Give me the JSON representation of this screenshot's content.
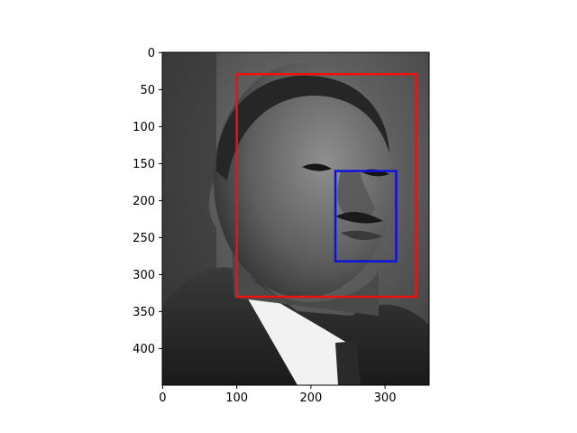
{
  "chart_data": {
    "type": "image",
    "image_kind": "grayscale portrait photograph",
    "image_shape": [
      450,
      360
    ],
    "xlim": [
      -0.5,
      359.5
    ],
    "ylim": [
      449.5,
      -0.5
    ],
    "x_ticks": [
      0,
      100,
      200,
      300
    ],
    "y_ticks": [
      0,
      50,
      100,
      150,
      200,
      250,
      300,
      350,
      400
    ],
    "x_tick_labels": [
      "0",
      "100",
      "200",
      "300"
    ],
    "y_tick_labels": [
      "0",
      "50",
      "100",
      "150",
      "200",
      "250",
      "300",
      "350",
      "400"
    ],
    "grid": false,
    "overlays": [
      {
        "shape": "rectangle",
        "color": "#ee1111",
        "x": [
          100,
          342
        ],
        "y": [
          29,
          330
        ]
      },
      {
        "shape": "rectangle",
        "color": "#1111dd",
        "x": [
          233,
          315
        ],
        "y": [
          160,
          282
        ]
      }
    ]
  }
}
